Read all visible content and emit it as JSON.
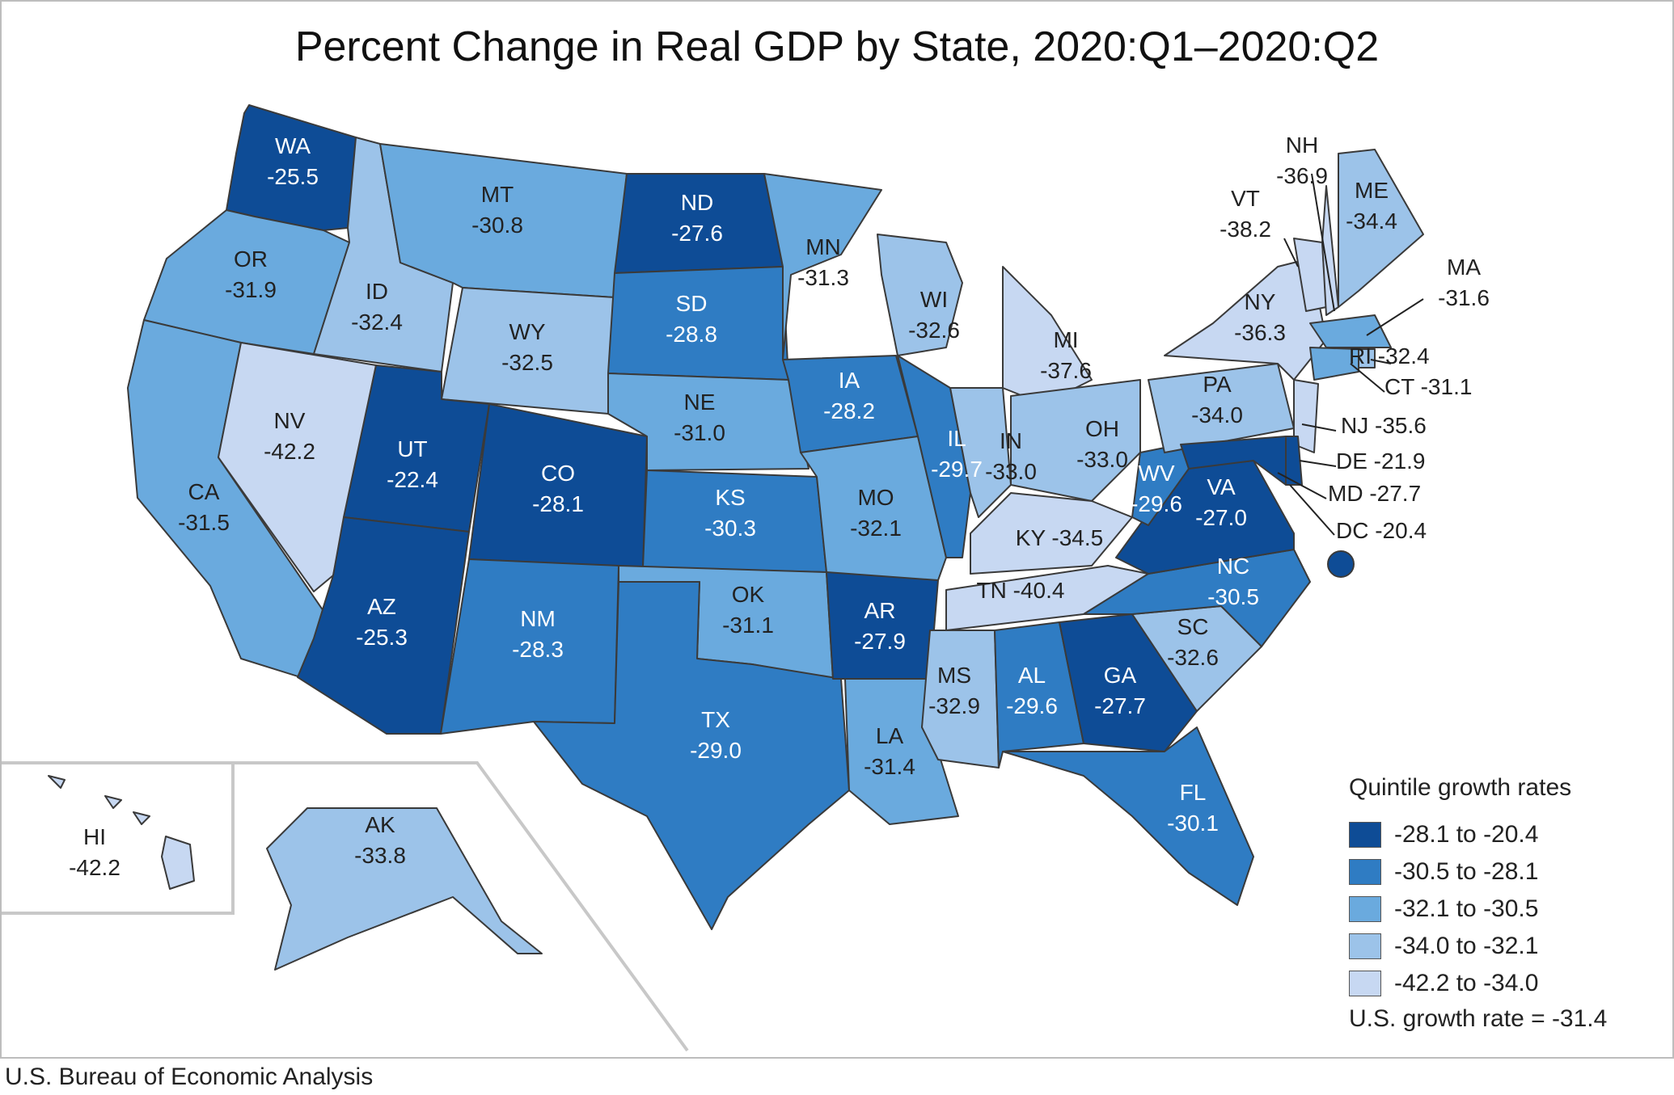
{
  "title": "Percent Change in Real GDP by State, 2020:Q1–2020:Q2",
  "footer": "U.S. Bureau of Economic Analysis",
  "colors": {
    "q1": "#0e4c96",
    "q2": "#2f7cc3",
    "q3": "#6aaade",
    "q4": "#9cc3e9",
    "q5": "#c7d8f2",
    "border": "#3a3a3a",
    "label_dark": "#ffffff",
    "label_light": "#222222"
  },
  "legend": {
    "title": "Quintile growth rates",
    "items": [
      {
        "label": "-28.1 to -20.4",
        "color": "#0e4c96"
      },
      {
        "label": "-30.5 to -28.1",
        "color": "#2f7cc3"
      },
      {
        "label": "-32.1 to -30.5",
        "color": "#6aaade"
      },
      {
        "label": "-34.0 to -32.1",
        "color": "#9cc3e9"
      },
      {
        "label": "-42.2 to -34.0",
        "color": "#c7d8f2"
      }
    ],
    "us_rate": "U.S. growth rate = -31.4"
  },
  "states": [
    {
      "abbr": "WA",
      "value": "-25.5"
    },
    {
      "abbr": "OR",
      "value": "-31.9"
    },
    {
      "abbr": "CA",
      "value": "-31.5"
    },
    {
      "abbr": "NV",
      "value": "-42.2"
    },
    {
      "abbr": "ID",
      "value": "-32.4"
    },
    {
      "abbr": "MT",
      "value": "-30.8"
    },
    {
      "abbr": "WY",
      "value": "-32.5"
    },
    {
      "abbr": "UT",
      "value": "-22.4"
    },
    {
      "abbr": "AZ",
      "value": "-25.3"
    },
    {
      "abbr": "CO",
      "value": "-28.1"
    },
    {
      "abbr": "NM",
      "value": "-28.3"
    },
    {
      "abbr": "ND",
      "value": "-27.6"
    },
    {
      "abbr": "SD",
      "value": "-28.8"
    },
    {
      "abbr": "NE",
      "value": "-31.0"
    },
    {
      "abbr": "KS",
      "value": "-30.3"
    },
    {
      "abbr": "OK",
      "value": "-31.1"
    },
    {
      "abbr": "TX",
      "value": "-29.0"
    },
    {
      "abbr": "MN",
      "value": "-31.3"
    },
    {
      "abbr": "IA",
      "value": "-28.2"
    },
    {
      "abbr": "MO",
      "value": "-32.1"
    },
    {
      "abbr": "AR",
      "value": "-27.9"
    },
    {
      "abbr": "LA",
      "value": "-31.4"
    },
    {
      "abbr": "WI",
      "value": "-32.6"
    },
    {
      "abbr": "IL",
      "value": "-29.7"
    },
    {
      "abbr": "MI",
      "value": "-37.6"
    },
    {
      "abbr": "IN",
      "value": "-33.0"
    },
    {
      "abbr": "OH",
      "value": "-33.0"
    },
    {
      "abbr": "KY",
      "value": "-34.5"
    },
    {
      "abbr": "TN",
      "value": "-40.4"
    },
    {
      "abbr": "MS",
      "value": "-32.9"
    },
    {
      "abbr": "AL",
      "value": "-29.6"
    },
    {
      "abbr": "GA",
      "value": "-27.7"
    },
    {
      "abbr": "FL",
      "value": "-30.1"
    },
    {
      "abbr": "SC",
      "value": "-32.6"
    },
    {
      "abbr": "NC",
      "value": "-30.5"
    },
    {
      "abbr": "VA",
      "value": "-27.0"
    },
    {
      "abbr": "WV",
      "value": "-29.6"
    },
    {
      "abbr": "PA",
      "value": "-34.0"
    },
    {
      "abbr": "NY",
      "value": "-36.3"
    },
    {
      "abbr": "VT",
      "value": "-38.2"
    },
    {
      "abbr": "NH",
      "value": "-36.9"
    },
    {
      "abbr": "ME",
      "value": "-34.4"
    },
    {
      "abbr": "MA",
      "value": "-31.6"
    },
    {
      "abbr": "RI",
      "value": "-32.4"
    },
    {
      "abbr": "CT",
      "value": "-31.1"
    },
    {
      "abbr": "NJ",
      "value": "-35.6"
    },
    {
      "abbr": "DE",
      "value": "-21.9"
    },
    {
      "abbr": "MD",
      "value": "-27.7"
    },
    {
      "abbr": "DC",
      "value": "-20.4"
    },
    {
      "abbr": "AK",
      "value": "-33.8"
    },
    {
      "abbr": "HI",
      "value": "-42.2"
    }
  ]
}
